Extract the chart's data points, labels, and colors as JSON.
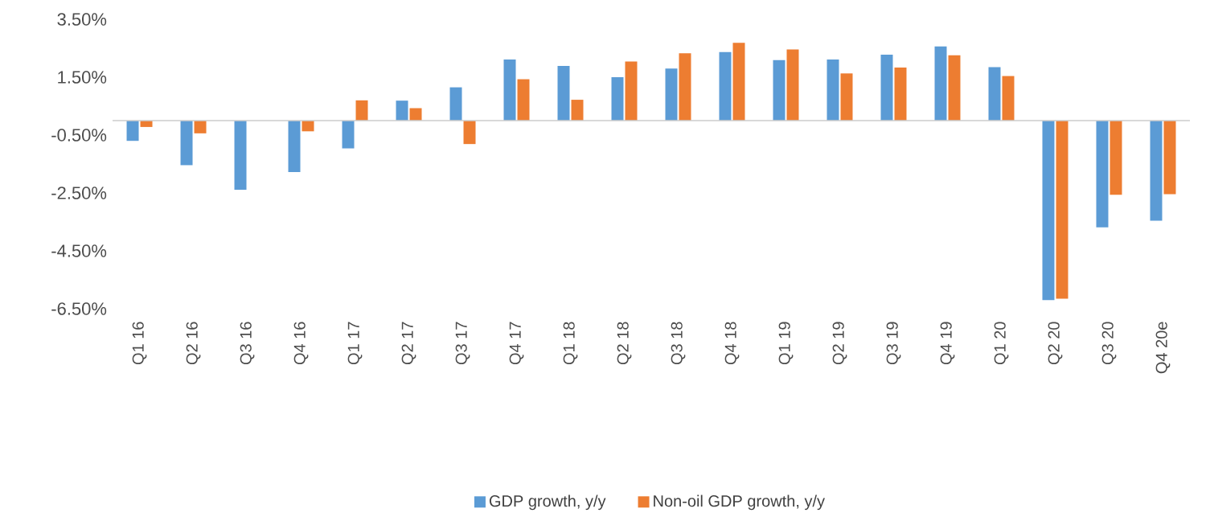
{
  "chart_data": {
    "type": "bar",
    "categories": [
      "Q1 16",
      "Q2 16",
      "Q3 16",
      "Q4 16",
      "Q1 17",
      "Q2 17",
      "Q3 17",
      "Q4 17",
      "Q1 18",
      "Q2 18",
      "Q3 18",
      "Q4 18",
      "Q1 19",
      "Q2 19",
      "Q3 19",
      "Q4 19",
      "Q1 20",
      "Q2 20",
      "Q3 20",
      "Q4 20e"
    ],
    "series": [
      {
        "name": "GDP growth, y/y",
        "color": "#5b9bd5",
        "values": [
          -0.7,
          -1.54,
          -2.39,
          -1.78,
          -0.96,
          0.69,
          1.15,
          2.11,
          1.89,
          1.5,
          1.8,
          2.37,
          2.09,
          2.11,
          2.28,
          2.56,
          1.85,
          -6.2,
          -3.69,
          -3.46
        ]
      },
      {
        "name": "Non-oil GDP growth, y/y",
        "color": "#ed7d31",
        "values": [
          -0.22,
          -0.44,
          0,
          -0.37,
          0.7,
          0.43,
          -0.81,
          1.43,
          0.72,
          2.04,
          2.33,
          2.69,
          2.46,
          1.63,
          1.83,
          2.26,
          1.54,
          -6.15,
          -2.56,
          -2.54
        ]
      }
    ],
    "ylim": [
      -6.5,
      3.5
    ],
    "yticks": [
      {
        "value": 3.5,
        "label": "3.50%"
      },
      {
        "value": 1.5,
        "label": "1.50%"
      },
      {
        "value": -0.5,
        "label": "-0.50%"
      },
      {
        "value": -2.5,
        "label": "-2.50%"
      },
      {
        "value": -4.5,
        "label": "-4.50%"
      },
      {
        "value": -6.5,
        "label": "-6.50%"
      }
    ],
    "grid": false,
    "legend": "bottom"
  }
}
